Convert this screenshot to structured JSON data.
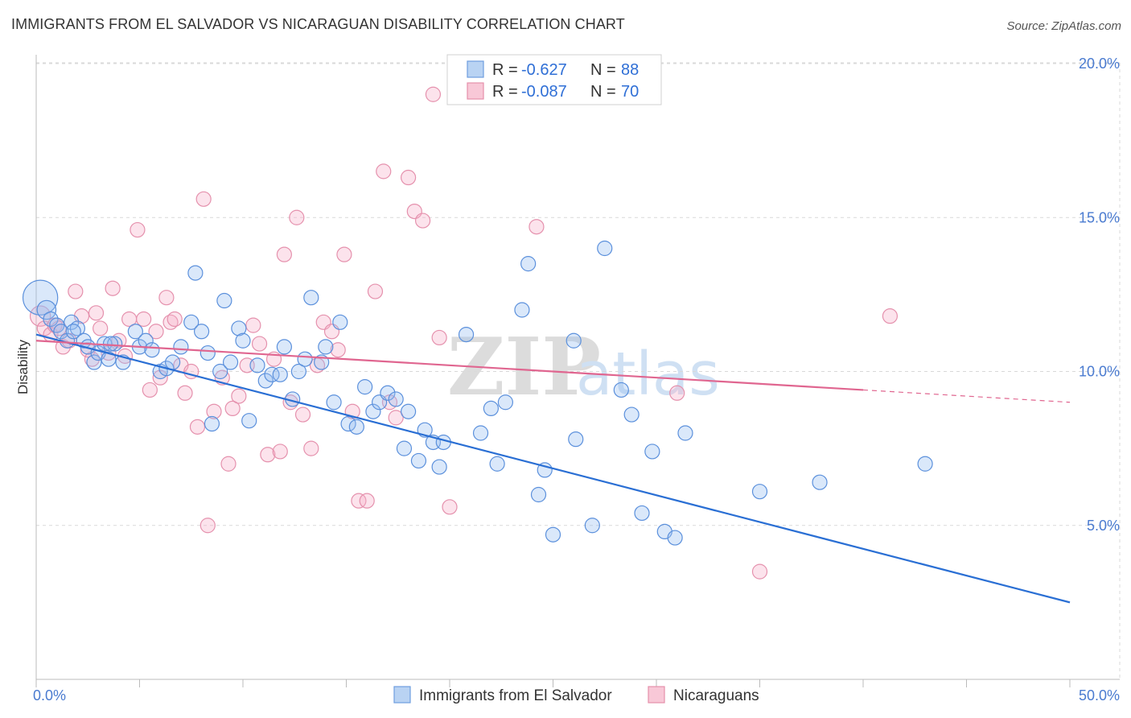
{
  "title": "IMMIGRANTS FROM EL SALVADOR VS NICARAGUAN DISABILITY CORRELATION CHART",
  "source": "Source: ZipAtlas.com",
  "watermark": {
    "zip": "ZIP",
    "atlas": "atlas"
  },
  "colors": {
    "blue": "#4a86d8",
    "pink": "#e68aa8",
    "blue_line": "#2a6fd4",
    "pink_line": "#e06690",
    "grid": "#d9d9d9"
  },
  "chart_data": {
    "type": "scatter",
    "title": "IMMIGRANTS FROM EL SALVADOR VS NICARAGUAN DISABILITY CORRELATION CHART",
    "xlabel": "",
    "ylabel": "Disability",
    "xlim": [
      0,
      50
    ],
    "ylim": [
      0,
      21
    ],
    "x_tick_labels": [
      "0.0%",
      "50.0%"
    ],
    "y_ticks": [
      5,
      10,
      15,
      20
    ],
    "y_tick_labels": [
      "5.0%",
      "10.0%",
      "15.0%",
      "20.0%"
    ],
    "legend": [
      {
        "name": "Immigrants from El Salvador",
        "r_label": "R =",
        "r": "-0.627",
        "n_label": "N =",
        "n": "88"
      },
      {
        "name": "Nicaraguans",
        "r_label": "R =",
        "r": "-0.087",
        "n_label": "N =",
        "n": "70"
      }
    ],
    "series": [
      {
        "name": "Immigrants from El Salvador",
        "trend": {
          "x0": 0,
          "y0": 11.2,
          "x1": 50,
          "y1": 2.5
        },
        "points": [
          [
            0.2,
            12.4,
            2.4
          ],
          [
            0.5,
            12.0,
            1.3
          ],
          [
            0.7,
            11.7,
            1
          ],
          [
            1.0,
            11.5,
            1
          ],
          [
            1.2,
            11.3,
            1
          ],
          [
            1.5,
            11.0,
            1
          ],
          [
            1.7,
            11.6,
            1
          ],
          [
            2.0,
            11.4,
            1
          ],
          [
            2.3,
            11.0,
            1
          ],
          [
            2.5,
            10.8,
            1
          ],
          [
            2.8,
            10.3,
            1
          ],
          [
            3.0,
            10.6,
            1
          ],
          [
            3.3,
            10.9,
            1
          ],
          [
            3.5,
            10.4,
            1
          ],
          [
            3.8,
            10.9,
            1
          ],
          [
            4.2,
            10.3,
            1
          ],
          [
            4.8,
            11.3,
            1
          ],
          [
            5.0,
            10.8,
            1
          ],
          [
            5.3,
            11.0,
            1
          ],
          [
            5.6,
            10.7,
            1
          ],
          [
            6.0,
            10.0,
            1
          ],
          [
            6.3,
            10.1,
            1
          ],
          [
            6.6,
            10.3,
            1
          ],
          [
            7.0,
            10.8,
            1
          ],
          [
            7.5,
            11.6,
            1
          ],
          [
            7.7,
            13.2,
            1
          ],
          [
            8.0,
            11.3,
            1
          ],
          [
            8.3,
            10.6,
            1
          ],
          [
            8.5,
            8.3,
            1
          ],
          [
            8.9,
            10.0,
            1
          ],
          [
            9.1,
            12.3,
            1
          ],
          [
            9.4,
            10.3,
            1
          ],
          [
            9.8,
            11.4,
            1
          ],
          [
            10.0,
            11.0,
            1
          ],
          [
            10.3,
            8.4,
            1
          ],
          [
            10.7,
            10.2,
            1
          ],
          [
            11.1,
            9.7,
            1
          ],
          [
            11.4,
            9.9,
            1
          ],
          [
            11.8,
            9.9,
            1
          ],
          [
            12.0,
            10.8,
            1
          ],
          [
            12.4,
            9.1,
            1
          ],
          [
            12.7,
            10.0,
            1
          ],
          [
            13.0,
            10.4,
            1
          ],
          [
            13.3,
            12.4,
            1
          ],
          [
            13.8,
            10.3,
            1
          ],
          [
            14.0,
            10.8,
            1
          ],
          [
            14.4,
            9.0,
            1
          ],
          [
            14.7,
            11.6,
            1
          ],
          [
            15.1,
            8.3,
            1
          ],
          [
            15.5,
            8.2,
            1
          ],
          [
            15.9,
            9.5,
            1
          ],
          [
            16.3,
            8.7,
            1
          ],
          [
            16.6,
            9.0,
            1
          ],
          [
            17.0,
            9.3,
            1
          ],
          [
            17.4,
            9.1,
            1
          ],
          [
            17.8,
            7.5,
            1
          ],
          [
            18.0,
            8.7,
            1
          ],
          [
            18.5,
            7.1,
            1
          ],
          [
            18.8,
            8.1,
            1
          ],
          [
            19.2,
            7.7,
            1
          ],
          [
            19.5,
            6.9,
            1
          ],
          [
            19.7,
            7.7,
            1
          ],
          [
            20.8,
            11.2,
            1
          ],
          [
            21.5,
            8.0,
            1
          ],
          [
            22.0,
            8.8,
            1
          ],
          [
            22.3,
            7.0,
            1
          ],
          [
            22.7,
            9.0,
            1
          ],
          [
            23.5,
            12.0,
            1
          ],
          [
            23.8,
            13.5,
            1
          ],
          [
            24.3,
            6.0,
            1
          ],
          [
            24.6,
            6.8,
            1
          ],
          [
            25.0,
            4.7,
            1
          ],
          [
            26.0,
            11.0,
            1
          ],
          [
            26.1,
            7.8,
            1
          ],
          [
            26.9,
            5.0,
            1
          ],
          [
            27.5,
            14.0,
            1
          ],
          [
            28.3,
            9.4,
            1
          ],
          [
            28.8,
            8.6,
            1
          ],
          [
            29.3,
            5.4,
            1
          ],
          [
            29.8,
            7.4,
            1
          ],
          [
            30.4,
            4.8,
            1
          ],
          [
            30.9,
            4.6,
            1
          ],
          [
            31.4,
            8.0,
            1
          ],
          [
            35.0,
            6.1,
            1
          ],
          [
            37.9,
            6.4,
            1
          ],
          [
            43.0,
            7.0,
            1
          ],
          [
            1.8,
            11.3,
            1
          ],
          [
            3.6,
            10.9,
            1
          ]
        ]
      },
      {
        "name": "Nicaraguans",
        "trend": {
          "x0": 0,
          "y0": 11.0,
          "x1": 40,
          "y1": 9.4,
          "dash_to_x": 50,
          "dash_to_y": 9.0
        },
        "points": [
          [
            0.2,
            11.8,
            1.4
          ],
          [
            0.4,
            11.4,
            1
          ],
          [
            0.7,
            11.2,
            1
          ],
          [
            0.9,
            11.5,
            1
          ],
          [
            1.1,
            11.4,
            1
          ],
          [
            1.3,
            10.8,
            1
          ],
          [
            1.6,
            11.0,
            1
          ],
          [
            1.9,
            12.6,
            1
          ],
          [
            2.2,
            11.8,
            1
          ],
          [
            2.5,
            10.7,
            1
          ],
          [
            2.7,
            10.4,
            1
          ],
          [
            2.9,
            11.9,
            1
          ],
          [
            3.1,
            11.4,
            1
          ],
          [
            3.5,
            10.6,
            1
          ],
          [
            3.7,
            12.7,
            1
          ],
          [
            4.0,
            11.0,
            1
          ],
          [
            4.3,
            10.5,
            1
          ],
          [
            4.5,
            11.7,
            1
          ],
          [
            4.9,
            14.6,
            1
          ],
          [
            5.2,
            11.7,
            1
          ],
          [
            5.5,
            9.4,
            1
          ],
          [
            5.8,
            11.3,
            1
          ],
          [
            6.0,
            9.8,
            1
          ],
          [
            6.3,
            12.4,
            1
          ],
          [
            6.5,
            11.6,
            1
          ],
          [
            6.7,
            11.7,
            1
          ],
          [
            7.0,
            10.2,
            1
          ],
          [
            7.2,
            9.3,
            1
          ],
          [
            7.5,
            10.0,
            1
          ],
          [
            7.8,
            8.2,
            1
          ],
          [
            8.1,
            15.6,
            1
          ],
          [
            8.3,
            5.0,
            1
          ],
          [
            8.6,
            8.7,
            1
          ],
          [
            9.0,
            9.8,
            1
          ],
          [
            9.3,
            7.0,
            1
          ],
          [
            9.5,
            8.8,
            1
          ],
          [
            9.8,
            9.2,
            1
          ],
          [
            10.2,
            10.2,
            1
          ],
          [
            10.5,
            11.5,
            1
          ],
          [
            10.8,
            10.9,
            1
          ],
          [
            11.2,
            7.3,
            1
          ],
          [
            11.5,
            10.4,
            1
          ],
          [
            11.8,
            7.4,
            1
          ],
          [
            12.0,
            13.8,
            1
          ],
          [
            12.3,
            9.0,
            1
          ],
          [
            12.6,
            15.0,
            1
          ],
          [
            12.9,
            8.6,
            1
          ],
          [
            13.3,
            7.5,
            1
          ],
          [
            13.6,
            10.2,
            1
          ],
          [
            13.9,
            11.6,
            1
          ],
          [
            14.3,
            11.3,
            1
          ],
          [
            14.6,
            10.7,
            1
          ],
          [
            14.9,
            13.8,
            1
          ],
          [
            15.3,
            8.7,
            1
          ],
          [
            15.6,
            5.8,
            1
          ],
          [
            16.0,
            5.8,
            1
          ],
          [
            16.4,
            12.6,
            1
          ],
          [
            16.8,
            16.5,
            1
          ],
          [
            17.1,
            9.0,
            1
          ],
          [
            17.4,
            8.5,
            1
          ],
          [
            18.0,
            16.3,
            1
          ],
          [
            18.3,
            15.2,
            1
          ],
          [
            18.7,
            14.9,
            1
          ],
          [
            19.2,
            19.0,
            1
          ],
          [
            19.5,
            11.1,
            1
          ],
          [
            20.0,
            5.6,
            1
          ],
          [
            24.2,
            14.7,
            1
          ],
          [
            31.0,
            9.3,
            1
          ],
          [
            35.0,
            3.5,
            1
          ],
          [
            41.3,
            11.8,
            1
          ]
        ]
      }
    ]
  }
}
